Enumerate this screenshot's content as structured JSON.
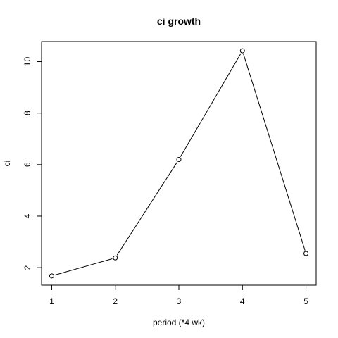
{
  "chart_data": {
    "type": "line",
    "title": "ci growth",
    "xlabel": "period (*4 wk)",
    "ylabel": "ci",
    "x": [
      1,
      2,
      3,
      4,
      5
    ],
    "series": [
      {
        "values": [
          1.68,
          2.38,
          6.2,
          10.42,
          2.55
        ]
      }
    ],
    "xticks": [
      "1",
      "2",
      "3",
      "4",
      "5"
    ],
    "yticks": [
      "2",
      "4",
      "6",
      "8",
      "10"
    ],
    "xlim": [
      0.84,
      5.16
    ],
    "ylim": [
      1.32,
      10.78
    ],
    "grid": false,
    "marker": "open-circle",
    "line_color": "#000000"
  }
}
